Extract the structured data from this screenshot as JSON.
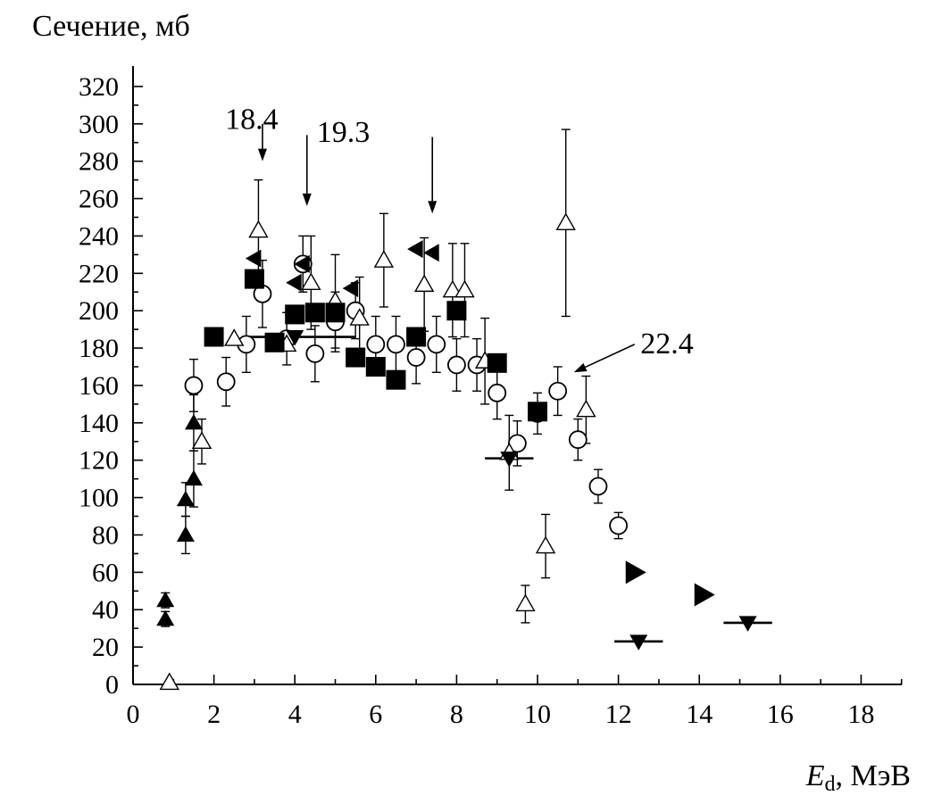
{
  "chart_data": {
    "type": "scatter",
    "ylabel": "Сечение, мб",
    "xlabel_main": "E",
    "xlabel_sub": "d",
    "xlabel_unit": ", МэВ",
    "xlim": [
      0,
      19
    ],
    "ylim": [
      0,
      320
    ],
    "x_ticks": [
      "0",
      "2",
      "4",
      "6",
      "8",
      "10",
      "12",
      "14",
      "16",
      "18"
    ],
    "y_ticks": [
      "0",
      "20",
      "40",
      "60",
      "80",
      "100",
      "120",
      "140",
      "160",
      "180",
      "200",
      "220",
      "240",
      "260",
      "280",
      "300",
      "320"
    ],
    "grid": false,
    "series": [
      {
        "marker": "circle-open",
        "points": [
          {
            "x": 1.5,
            "y": 160,
            "err": 14
          },
          {
            "x": 2.3,
            "y": 162,
            "err": 13
          },
          {
            "x": 2.8,
            "y": 182,
            "err": 15
          },
          {
            "x": 3.2,
            "y": 209,
            "err": 18
          },
          {
            "x": 3.8,
            "y": 185,
            "err": 14
          },
          {
            "x": 4.2,
            "y": 225,
            "err": 15
          },
          {
            "x": 4.5,
            "y": 177,
            "err": 15
          },
          {
            "x": 5.0,
            "y": 194,
            "err": 16
          },
          {
            "x": 5.5,
            "y": 200,
            "err": 15
          },
          {
            "x": 6.0,
            "y": 182,
            "err": 15
          },
          {
            "x": 6.5,
            "y": 182,
            "err": 15
          },
          {
            "x": 7.0,
            "y": 175,
            "err": 14
          },
          {
            "x": 7.5,
            "y": 182,
            "err": 15
          },
          {
            "x": 8.0,
            "y": 171,
            "err": 14
          },
          {
            "x": 8.5,
            "y": 171,
            "err": 14
          },
          {
            "x": 9.0,
            "y": 156,
            "err": 14
          },
          {
            "x": 9.5,
            "y": 129,
            "err": 12
          },
          {
            "x": 10.0,
            "y": 145,
            "err": 11
          },
          {
            "x": 10.5,
            "y": 157,
            "err": 13
          },
          {
            "x": 11.0,
            "y": 131,
            "err": 11
          },
          {
            "x": 11.5,
            "y": 106,
            "err": 9
          },
          {
            "x": 12.0,
            "y": 85,
            "err": 7
          }
        ]
      },
      {
        "marker": "triangle-up-open",
        "points": [
          {
            "x": 0.9,
            "y": 1,
            "err": 0
          },
          {
            "x": 1.7,
            "y": 130,
            "err": 12
          },
          {
            "x": 2.5,
            "y": 185,
            "err": 0
          },
          {
            "x": 3.1,
            "y": 243,
            "err": 27
          },
          {
            "x": 3.8,
            "y": 182,
            "err": 0
          },
          {
            "x": 4.4,
            "y": 215,
            "err": 25
          },
          {
            "x": 5.0,
            "y": 205,
            "err": 25
          },
          {
            "x": 5.6,
            "y": 196,
            "err": 22
          },
          {
            "x": 6.2,
            "y": 227,
            "err": 25
          },
          {
            "x": 7.2,
            "y": 214,
            "err": 25
          },
          {
            "x": 7.9,
            "y": 211,
            "err": 25
          },
          {
            "x": 8.2,
            "y": 211,
            "err": 25
          },
          {
            "x": 8.7,
            "y": 173,
            "err": 23
          },
          {
            "x": 9.3,
            "y": 124,
            "err": 20
          },
          {
            "x": 9.7,
            "y": 43,
            "err": 10
          },
          {
            "x": 10.2,
            "y": 74,
            "err": 17
          },
          {
            "x": 10.7,
            "y": 247,
            "err": 50
          },
          {
            "x": 11.2,
            "y": 147,
            "err": 18
          }
        ]
      },
      {
        "marker": "triangle-up-filled",
        "points": [
          {
            "x": 0.8,
            "y": 35,
            "err": 4
          },
          {
            "x": 0.8,
            "y": 45,
            "err": 4
          },
          {
            "x": 1.3,
            "y": 80,
            "err": 10
          },
          {
            "x": 1.3,
            "y": 99,
            "err": 9
          },
          {
            "x": 1.5,
            "y": 110,
            "err": 15
          },
          {
            "x": 1.5,
            "y": 140,
            "err": 15
          }
        ]
      },
      {
        "marker": "square-filled",
        "points": [
          {
            "x": 2.0,
            "y": 186,
            "err": 0
          },
          {
            "x": 3.0,
            "y": 217,
            "err": 0
          },
          {
            "x": 3.5,
            "y": 183,
            "err": 0
          },
          {
            "x": 4.0,
            "y": 198,
            "err": 0
          },
          {
            "x": 4.5,
            "y": 199,
            "err": 0
          },
          {
            "x": 5.0,
            "y": 199,
            "err": 0
          },
          {
            "x": 5.5,
            "y": 175,
            "err": 0
          },
          {
            "x": 6.0,
            "y": 170,
            "err": 0
          },
          {
            "x": 6.5,
            "y": 163,
            "err": 0
          },
          {
            "x": 7.0,
            "y": 186,
            "err": 0
          },
          {
            "x": 8.0,
            "y": 200,
            "err": 0
          },
          {
            "x": 9.0,
            "y": 172,
            "err": 0
          },
          {
            "x": 10.0,
            "y": 146,
            "err": 0
          }
        ]
      },
      {
        "marker": "triangle-left-filled",
        "points": [
          {
            "x": 3.0,
            "y": 228,
            "err": 0
          },
          {
            "x": 4.0,
            "y": 215,
            "err": 0
          },
          {
            "x": 4.2,
            "y": 225,
            "err": 0
          },
          {
            "x": 5.4,
            "y": 212,
            "err": 0
          },
          {
            "x": 7.0,
            "y": 233,
            "err": 0
          },
          {
            "x": 7.4,
            "y": 231,
            "err": 0
          }
        ]
      },
      {
        "marker": "triangle-right-filled",
        "points": [
          {
            "x": 12.4,
            "y": 60,
            "err": 0
          },
          {
            "x": 14.1,
            "y": 48,
            "err": 0
          }
        ]
      },
      {
        "marker": "triangle-down-filled",
        "points": [
          {
            "x": 4.0,
            "y": 186,
            "x0": 2.7,
            "x1": 5.5
          },
          {
            "x": 9.3,
            "y": 121,
            "x0": 8.7,
            "x1": 9.9
          },
          {
            "x": 12.5,
            "y": 23,
            "x0": 11.9,
            "x1": 13.1
          },
          {
            "x": 15.2,
            "y": 33,
            "x0": 14.6,
            "x1": 15.8
          }
        ]
      }
    ],
    "annotations": [
      {
        "text": "18.4",
        "text_x": 3.0,
        "text_y": 303,
        "arrow_from": [
          3.2,
          300
        ],
        "arrow_to": [
          3.2,
          280
        ]
      },
      {
        "text": "19.3",
        "text_x": 5.2,
        "text_y": 296,
        "arrow_from": [
          4.3,
          294
        ],
        "arrow_to": [
          4.3,
          256
        ]
      },
      {
        "text": "",
        "text_x": 0,
        "text_y": 0,
        "arrow_from": [
          7.4,
          293
        ],
        "arrow_to": [
          7.4,
          252
        ]
      },
      {
        "text": "22.4",
        "text_x": 13.2,
        "text_y": 183,
        "arrow_from": [
          12.4,
          182
        ],
        "arrow_to": [
          10.9,
          167
        ]
      }
    ]
  }
}
